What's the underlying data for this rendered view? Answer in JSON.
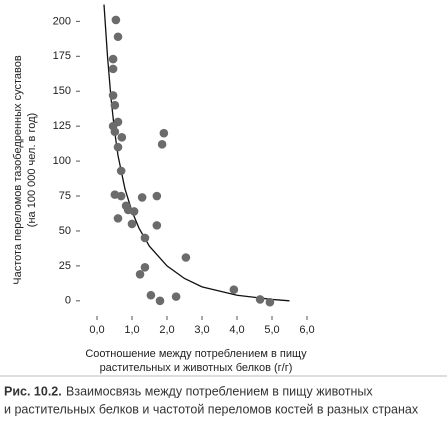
{
  "chart_data": {
    "type": "scatter",
    "xlabel": [
      "Соотношение между потреблением в пищу",
      "растительных и животных белков (г/г)"
    ],
    "ylabel": [
      "Частота переломов тазобедренных суставов",
      "(на 100 000 чел. в год)"
    ],
    "x": [
      0.54,
      0.6,
      0.46,
      0.46,
      0.46,
      0.51,
      0.46,
      0.6,
      0.51,
      0.6,
      0.71,
      1.91,
      1.86,
      0.51,
      0.69,
      0.69,
      0.6,
      0.89,
      0.83,
      1.06,
      1.0,
      1.29,
      1.71,
      1.37,
      2.54,
      1.71,
      1.23,
      1.37,
      1.54,
      1.8,
      2.26,
      3.91,
      4.66,
      4.94
    ],
    "y": [
      201,
      189,
      173,
      166,
      147,
      140,
      125,
      128,
      121,
      110,
      117,
      120,
      112,
      76,
      75,
      93,
      59,
      65,
      68,
      64,
      55,
      74,
      75,
      45,
      31,
      54,
      19,
      24,
      4,
      0,
      3,
      8,
      1,
      -1
    ],
    "color": "#6b6b6b",
    "fit": {
      "x": [
        0.2,
        0.3,
        0.4,
        0.5,
        0.6,
        0.8,
        1.0,
        1.2,
        1.5,
        2.0,
        2.5,
        3.0,
        4.0,
        5.0,
        5.5
      ],
      "y": [
        212,
        175,
        145,
        122,
        104,
        80,
        64,
        52,
        39,
        25,
        16,
        10,
        4,
        1,
        0
      ],
      "color": "#111111"
    },
    "xlim": [
      -0.3,
      6.2
    ],
    "ylim": [
      -8,
      211
    ],
    "xticks": [
      {
        "value": 0,
        "label": "0,0"
      },
      {
        "value": 1,
        "label": "1,0"
      },
      {
        "value": 2,
        "label": "2,0"
      },
      {
        "value": 3,
        "label": "3,0"
      },
      {
        "value": 4,
        "label": "4,0"
      },
      {
        "value": 5,
        "label": "5,0"
      },
      {
        "value": 6,
        "label": "6,0"
      }
    ],
    "yticks": [
      0,
      25,
      50,
      75,
      100,
      125,
      150,
      175,
      200
    ]
  },
  "caption": {
    "label": "Рис. 10.2.",
    "lines": [
      "Взаимосвязь между потреблением в пищу животных",
      "и растительных белков и частотой переломов костей в разных странах"
    ]
  }
}
